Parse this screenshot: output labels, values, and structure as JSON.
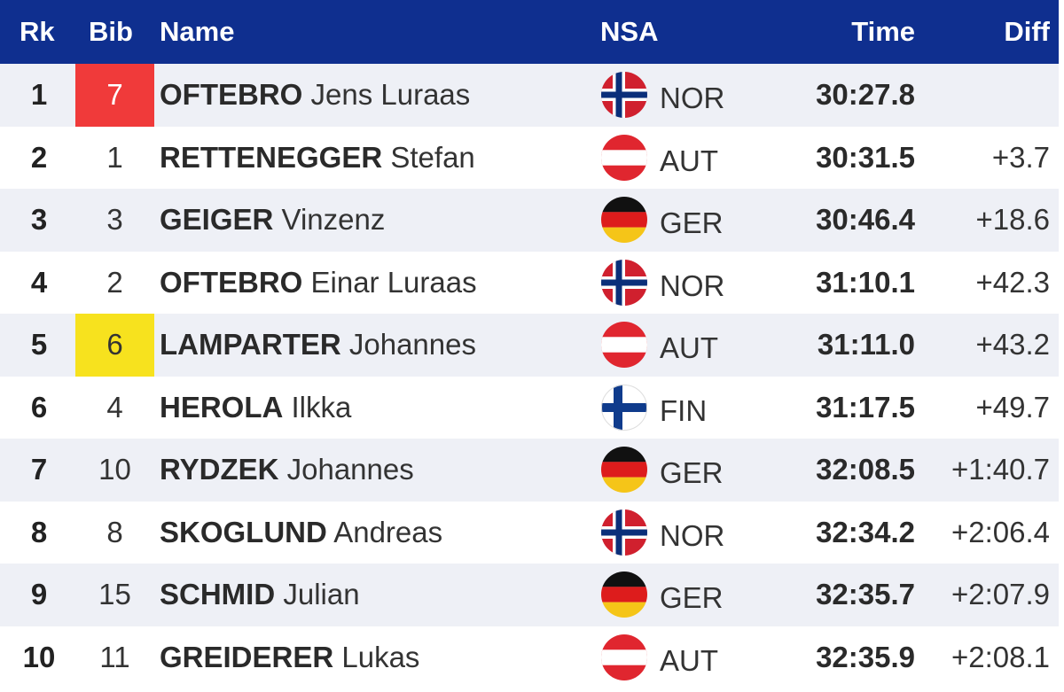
{
  "header": {
    "rk": "Rk",
    "bib": "Bib",
    "name": "Name",
    "nsa": "NSA",
    "time": "Time",
    "diff": "Diff"
  },
  "colors": {
    "header_bg": "#0f2f8f",
    "bib_red": "#f03a3a",
    "bib_yellow": "#f7e21e"
  },
  "rows": [
    {
      "rk": "1",
      "bib": "7",
      "bib_highlight": "red",
      "last": "OFTEBRO",
      "first": "Jens Luraas",
      "nsa": "NOR",
      "flag": "norway-flag-icon",
      "time": "30:27.8",
      "diff": ""
    },
    {
      "rk": "2",
      "bib": "1",
      "bib_highlight": "",
      "last": "RETTENEGGER",
      "first": "Stefan",
      "nsa": "AUT",
      "flag": "austria-flag-icon",
      "time": "30:31.5",
      "diff": "+3.7"
    },
    {
      "rk": "3",
      "bib": "3",
      "bib_highlight": "",
      "last": "GEIGER",
      "first": "Vinzenz",
      "nsa": "GER",
      "flag": "germany-flag-icon",
      "time": "30:46.4",
      "diff": "+18.6"
    },
    {
      "rk": "4",
      "bib": "2",
      "bib_highlight": "",
      "last": "OFTEBRO",
      "first": "Einar Luraas",
      "nsa": "NOR",
      "flag": "norway-flag-icon",
      "time": "31:10.1",
      "diff": "+42.3"
    },
    {
      "rk": "5",
      "bib": "6",
      "bib_highlight": "yellow",
      "last": "LAMPARTER",
      "first": "Johannes",
      "nsa": "AUT",
      "flag": "austria-flag-icon",
      "time": "31:11.0",
      "diff": "+43.2"
    },
    {
      "rk": "6",
      "bib": "4",
      "bib_highlight": "",
      "last": "HEROLA",
      "first": "Ilkka",
      "nsa": "FIN",
      "flag": "finland-flag-icon",
      "time": "31:17.5",
      "diff": "+49.7"
    },
    {
      "rk": "7",
      "bib": "10",
      "bib_highlight": "",
      "last": "RYDZEK",
      "first": "Johannes",
      "nsa": "GER",
      "flag": "germany-flag-icon",
      "time": "32:08.5",
      "diff": "+1:40.7"
    },
    {
      "rk": "8",
      "bib": "8",
      "bib_highlight": "",
      "last": "SKOGLUND",
      "first": "Andreas",
      "nsa": "NOR",
      "flag": "norway-flag-icon",
      "time": "32:34.2",
      "diff": "+2:06.4"
    },
    {
      "rk": "9",
      "bib": "15",
      "bib_highlight": "",
      "last": "SCHMID",
      "first": "Julian",
      "nsa": "GER",
      "flag": "germany-flag-icon",
      "time": "32:35.7",
      "diff": "+2:07.9"
    },
    {
      "rk": "10",
      "bib": "11",
      "bib_highlight": "",
      "last": "GREIDERER",
      "first": "Lukas",
      "nsa": "AUT",
      "flag": "austria-flag-icon",
      "time": "32:35.9",
      "diff": "+2:08.1"
    }
  ]
}
